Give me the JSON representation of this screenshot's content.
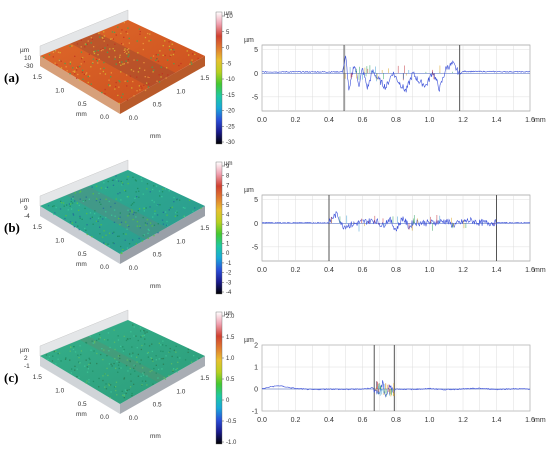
{
  "rows": [
    {
      "label": "(a)",
      "surface": {
        "z_unit": "µm",
        "z_tick_labels": [
          "10",
          "-30"
        ],
        "axis_unit": "mm",
        "front_ticks": [
          "0.0",
          "0.5",
          "1.0",
          "1.5"
        ],
        "side_ticks": [
          "0.0",
          "0.5",
          "1.0",
          "1.5"
        ],
        "colorbar": {
          "unit": "µm",
          "ticks": [
            "10",
            "5",
            "0",
            "-5",
            "-10",
            "-15",
            "-20",
            "-25",
            "-30"
          ],
          "min": -30,
          "max": 10,
          "colors": [
            "#000000",
            "#1a1a8c",
            "#2a4ed8",
            "#18a8d8",
            "#1ec8a0",
            "#44c830",
            "#b8d020",
            "#e8c030",
            "#e07a30",
            "#d04030",
            "#f0a0b0",
            "#ffffff"
          ]
        }
      },
      "profile": {
        "y_unit": "µm",
        "x_unit": "mm",
        "x_ticks": [
          "0.0",
          "0.2",
          "0.4",
          "0.6",
          "0.8",
          "1.0",
          "1.2",
          "1.4",
          "1.6"
        ],
        "y_ticks": [
          "5",
          "0",
          "-5"
        ],
        "marker_labels": [],
        "chart_data": {
          "type": "line",
          "xlim": [
            0,
            1.6
          ],
          "ylim": [
            -8,
            6
          ],
          "markers_x": [
            0.49,
            1.18
          ],
          "baseline": 0,
          "series": [
            {
              "color": "#3a4fd8",
              "x": [
                0.0,
                0.48,
                0.5,
                0.52,
                0.55,
                0.58,
                0.6,
                0.63,
                0.66,
                0.7,
                0.74,
                0.78,
                0.82,
                0.86,
                0.9,
                0.94,
                0.98,
                1.02,
                1.06,
                1.1,
                1.14,
                1.18,
                1.2,
                1.6
              ],
              "values": [
                0.3,
                0.3,
                3.5,
                -4.0,
                2.0,
                -2.5,
                1.0,
                -3.2,
                0.5,
                -1.5,
                -3.0,
                0.2,
                -2.0,
                -3.8,
                0.0,
                -1.8,
                -2.6,
                0.4,
                -3.4,
                1.2,
                2.0,
                -0.2,
                0.4,
                0.3
              ]
            }
          ]
        }
      }
    },
    {
      "label": "(b)",
      "surface": {
        "z_unit": "µm",
        "z_tick_labels": [
          "9",
          "-4"
        ],
        "axis_unit": "mm",
        "front_ticks": [
          "0.0",
          "0.5",
          "1.0",
          "1.5"
        ],
        "side_ticks": [
          "0.0",
          "0.5",
          "1.0",
          "1.5"
        ],
        "colorbar": {
          "unit": "µm",
          "ticks": [
            "9",
            "8",
            "7",
            "6",
            "5",
            "4",
            "3",
            "2",
            "1",
            "0",
            "-1",
            "-2",
            "-3",
            "-4"
          ],
          "min": -4,
          "max": 9,
          "colors": [
            "#000000",
            "#1a1a8c",
            "#2a4ed8",
            "#18a8d8",
            "#1ec8a0",
            "#44c830",
            "#b8d020",
            "#e8c030",
            "#e07a30",
            "#d04030",
            "#f0a0b0",
            "#ffffff"
          ]
        }
      },
      "profile": {
        "y_unit": "µm",
        "x_unit": "mm",
        "x_ticks": [
          "0.0",
          "0.2",
          "0.4",
          "0.6",
          "0.8",
          "1.0",
          "1.2",
          "1.4",
          "1.6"
        ],
        "y_ticks": [
          "5",
          "0",
          "-5"
        ],
        "marker_labels": [],
        "chart_data": {
          "type": "line",
          "xlim": [
            0,
            1.6
          ],
          "ylim": [
            -8,
            6
          ],
          "markers_x": [
            0.4,
            1.4
          ],
          "baseline": 0,
          "series": [
            {
              "color": "#3a4fd8",
              "x": [
                0.0,
                0.4,
                0.42,
                0.45,
                0.48,
                0.52,
                0.6,
                0.68,
                0.72,
                0.76,
                0.8,
                0.84,
                0.88,
                0.9,
                1.0,
                1.1,
                1.14,
                1.2,
                1.24,
                1.3,
                1.4,
                1.6
              ],
              "values": [
                0.1,
                0.1,
                1.2,
                2.0,
                -0.6,
                -0.4,
                0.3,
                0.6,
                -0.5,
                0.9,
                -1.4,
                1.2,
                -0.9,
                0.2,
                0.1,
                0.5,
                -0.4,
                0.3,
                0.6,
                0.1,
                0.1,
                0.1
              ]
            }
          ]
        }
      }
    },
    {
      "label": "(c)",
      "surface": {
        "z_unit": "µm",
        "z_tick_labels": [
          "2",
          "-1"
        ],
        "axis_unit": "mm",
        "front_ticks": [
          "0.0",
          "0.5",
          "1.0",
          "1.5"
        ],
        "side_ticks": [
          "0.0",
          "0.5",
          "1.0",
          "1.5"
        ],
        "colorbar": {
          "unit": "µm",
          "ticks": [
            "2.0",
            "1.5",
            "1.0",
            "0.5",
            "0",
            "-0.5",
            "-1.0"
          ],
          "min": -1,
          "max": 2,
          "colors": [
            "#000000",
            "#1a1a8c",
            "#2a4ed8",
            "#18a8d8",
            "#1ec8a0",
            "#44c830",
            "#b8d020",
            "#e8c030",
            "#e07a30",
            "#d04030",
            "#f0a0b0",
            "#ffffff"
          ]
        }
      },
      "profile": {
        "y_unit": "µm",
        "x_unit": "mm",
        "x_ticks": [
          "0.0",
          "0.2",
          "0.4",
          "0.6",
          "0.8",
          "1.0",
          "1.2",
          "1.4",
          "1.6"
        ],
        "y_ticks": [
          "2",
          "1",
          "0",
          "-1"
        ],
        "marker_labels": [],
        "chart_data": {
          "type": "line",
          "xlim": [
            0,
            1.6
          ],
          "ylim": [
            -1,
            2
          ],
          "markers_x": [
            0.67,
            0.79
          ],
          "baseline": 0,
          "series": [
            {
              "color": "#3a4fd8",
              "x": [
                0.0,
                0.05,
                0.1,
                0.2,
                0.3,
                0.4,
                0.5,
                0.6,
                0.66,
                0.7,
                0.72,
                0.74,
                0.76,
                0.78,
                0.8,
                0.9,
                1.0,
                1.1,
                1.2,
                1.3,
                1.4,
                1.5,
                1.6
              ],
              "values": [
                0.0,
                0.1,
                0.15,
                0.02,
                -0.03,
                0.0,
                -0.02,
                0.0,
                0.05,
                -0.2,
                0.25,
                -0.35,
                0.15,
                -0.1,
                0.0,
                -0.02,
                0.02,
                -0.03,
                0.0,
                0.03,
                -0.02,
                0.01,
                0.0
              ]
            }
          ]
        }
      }
    }
  ]
}
